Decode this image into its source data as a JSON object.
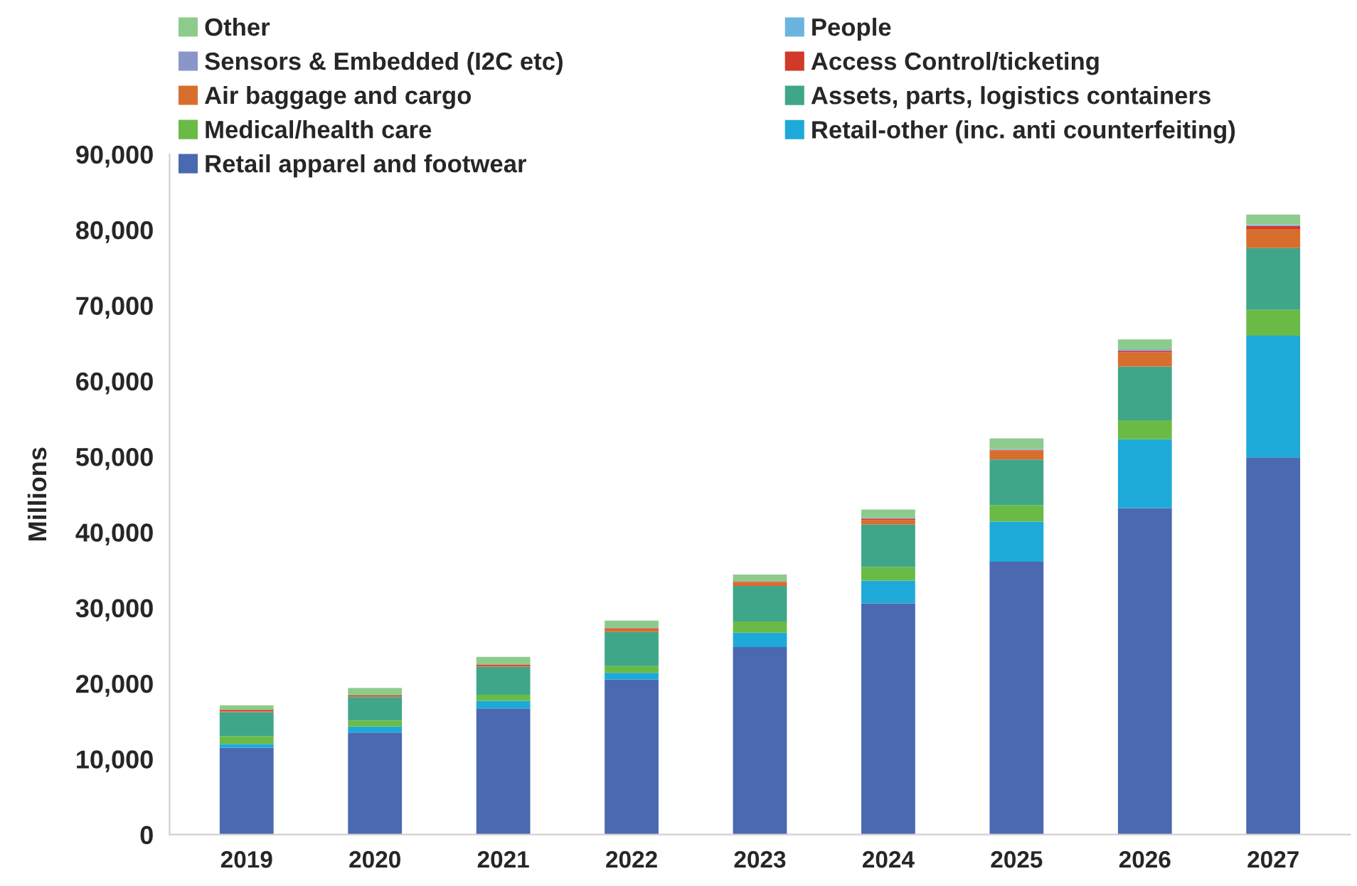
{
  "chart_data": {
    "type": "bar",
    "stacked": true,
    "ylabel": "Millions",
    "categories": [
      "2019",
      "2020",
      "2021",
      "2022",
      "2023",
      "2024",
      "2025",
      "2026",
      "2027"
    ],
    "ylim": [
      0,
      90000
    ],
    "yticks": [
      {
        "value": 0,
        "label": "0"
      },
      {
        "value": 10000,
        "label": "10,000"
      },
      {
        "value": 20000,
        "label": "20,000"
      },
      {
        "value": 30000,
        "label": "30,000"
      },
      {
        "value": 40000,
        "label": "40,000"
      },
      {
        "value": 50000,
        "label": "50,000"
      },
      {
        "value": 60000,
        "label": "60,000"
      },
      {
        "value": 70000,
        "label": "70,000"
      },
      {
        "value": 80000,
        "label": "80,000"
      },
      {
        "value": 90000,
        "label": "90,000"
      }
    ],
    "legend": "top left",
    "grid": false,
    "series": [
      {
        "name": "Retail apparel and footwear",
        "color": "#4a69b0",
        "values": [
          11500,
          13500,
          16700,
          20500,
          24800,
          30600,
          36100,
          43200,
          49900
        ]
      },
      {
        "name": "Retail-other (inc. anti counterfeiting)",
        "color": "#1eaad8",
        "values": [
          500,
          800,
          1000,
          900,
          1900,
          3000,
          5300,
          9100,
          16100
        ]
      },
      {
        "name": "Medical/health care",
        "color": "#6abb46",
        "values": [
          1000,
          800,
          800,
          900,
          1500,
          1800,
          2200,
          2500,
          3400
        ]
      },
      {
        "name": "Assets, parts, logistics containers",
        "color": "#3fa68a",
        "values": [
          3200,
          3100,
          3700,
          4500,
          4700,
          5600,
          6000,
          7100,
          8200
        ]
      },
      {
        "name": "Air baggage and cargo",
        "color": "#d86e2e",
        "values": [
          100,
          100,
          100,
          300,
          500,
          600,
          1200,
          1900,
          2500
        ]
      },
      {
        "name": "Access Control/ticketing",
        "color": "#d03a2a",
        "values": [
          200,
          100,
          200,
          200,
          100,
          200,
          100,
          200,
          400
        ]
      },
      {
        "name": "Sensors & Embedded (I2C etc)",
        "color": "#8b96c8",
        "values": [
          0,
          0,
          0,
          0,
          0,
          0,
          0,
          100,
          100
        ]
      },
      {
        "name": "People",
        "color": "#6cb4e0",
        "values": [
          0,
          0,
          0,
          0,
          0,
          100,
          100,
          100,
          100
        ]
      },
      {
        "name": "Other",
        "color": "#8dcb8d",
        "values": [
          600,
          1000,
          1000,
          1000,
          900,
          1100,
          1400,
          1300,
          1300
        ]
      }
    ]
  }
}
